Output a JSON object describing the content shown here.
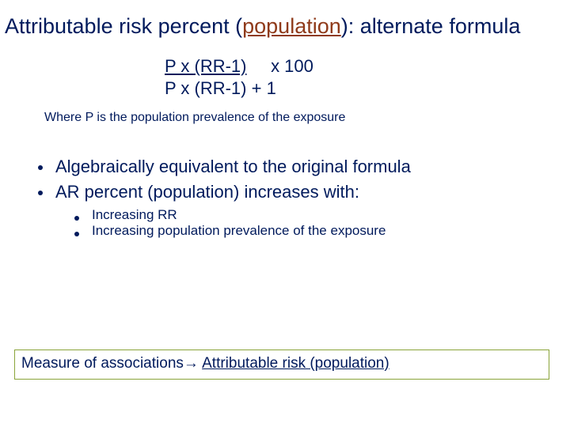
{
  "colors": {
    "title": "#001a5c",
    "accent": "#8f3a1a",
    "box_border": "#8aa43a",
    "background": "#ffffff"
  },
  "title": {
    "pre": "Attributable risk percent (",
    "accent": "population",
    "post": "): alternate formula"
  },
  "formula": {
    "numerator": "P  x  (RR-1)",
    "multiplier": "x 100",
    "denominator": "P x (RR-1) + 1"
  },
  "where_text": "Where P is the population prevalence of the exposure",
  "bullet1": "Algebraically equivalent to the original formula",
  "bullet2": "AR percent (population) increases with:",
  "sub1": "Increasing RR",
  "sub2": "Increasing population prevalence of the exposure",
  "footer": {
    "lead": "Measure of associations",
    "arrow": "→",
    "tail": "Attributable risk (population)"
  }
}
